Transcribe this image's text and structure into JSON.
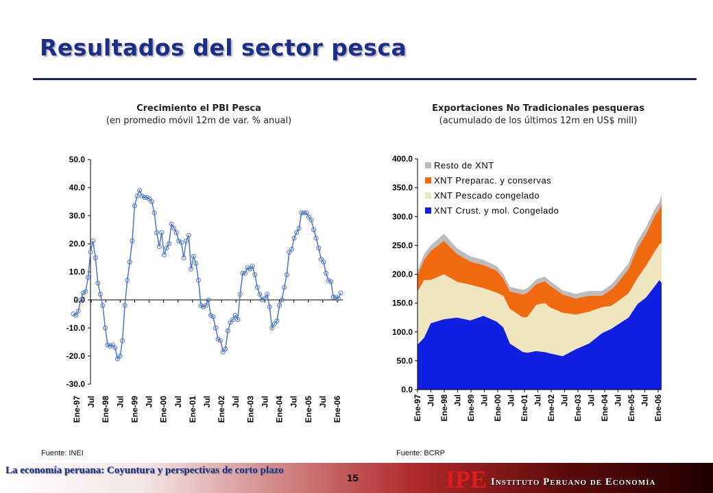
{
  "page": {
    "title": "Resultados del sector pesca",
    "footer_text": "La economía peruana: Coyuntura y perspectivas de corto plazo",
    "page_number": "15",
    "logo": "IPE",
    "institute_name": "Instituto Peruano de Economía"
  },
  "chart_data": [
    {
      "type": "line",
      "title": "Crecimiento el PBI Pesca",
      "subtitle": "(en promedio móvil 12m de var. % anual)",
      "source": "Fuente: INEI",
      "ylim": [
        -30,
        50
      ],
      "yticks": [
        "-30.0",
        "-20.0",
        "-10.0",
        "0.0",
        "10.0",
        "20.0",
        "30.0",
        "40.0",
        "50.0"
      ],
      "xticks": [
        "Ene-97",
        "Jul",
        "Ene-98",
        "Jul",
        "Ene-99",
        "Jul",
        "Ene-00",
        "Jul",
        "Ene-01",
        "Jul",
        "Ene-02",
        "Jul",
        "Ene-03",
        "Jul",
        "Ene-04",
        "Jul",
        "Ene-05",
        "Jul",
        "Ene-06"
      ],
      "grid": false,
      "marker": "open-circle",
      "color": "#4a74c9",
      "values": [
        -5,
        -5.5,
        -4,
        0,
        2.5,
        3,
        8,
        17,
        21,
        15,
        6,
        2,
        -2,
        -10,
        -16,
        -16.5,
        -16,
        -17,
        -21,
        -20,
        -14.5,
        -2,
        7,
        13.5,
        21,
        33.5,
        37,
        39,
        37,
        36.5,
        36.5,
        36,
        35,
        31,
        24,
        19,
        24,
        16,
        18.5,
        20,
        27,
        25.5,
        24,
        21,
        20.5,
        15,
        21,
        23,
        11,
        15.5,
        13,
        7,
        -2,
        -2.5,
        -2,
        0,
        -5.5,
        -6,
        -10,
        -14,
        -14.5,
        -18.5,
        -17.5,
        -11,
        -8,
        -7,
        -5.5,
        -7,
        2,
        9.5,
        9.5,
        11.5,
        11,
        12,
        9,
        4.5,
        2,
        0,
        0.5,
        2,
        -2.5,
        -10,
        -8.5,
        -7.5,
        -2,
        0,
        4.5,
        9,
        17,
        18,
        22,
        24,
        25.5,
        31,
        31,
        31,
        29.5,
        28.5,
        25,
        22,
        18.5,
        14.5,
        13.5,
        9.5,
        7,
        6.5,
        1,
        1,
        0.5,
        2.5
      ]
    },
    {
      "type": "area",
      "stacked": true,
      "title": "Exportaciones No Tradicionales pesqueras",
      "subtitle": "(acumulado de los últimos 12m en US$ mill)",
      "source": "Fuente: BCRP",
      "ylim": [
        0,
        400
      ],
      "yticks": [
        "0.0",
        "50.0",
        "100.0",
        "150.0",
        "200.0",
        "250.0",
        "300.0",
        "350.0",
        "400.0"
      ],
      "xticks": [
        "Ene-97",
        "Jul",
        "Ene-98",
        "Jul",
        "Ene-99",
        "Jul",
        "Ene-00",
        "Jul",
        "Ene-01",
        "Jul",
        "Ene-02",
        "Jul",
        "Ene-03",
        "Jul",
        "Ene-04",
        "Jul",
        "Ene-05",
        "Jul",
        "Ene-06"
      ],
      "legend_position": "top-left",
      "series_anchors_months": [
        0,
        3,
        6,
        12,
        18,
        24,
        30,
        36,
        39,
        42,
        48,
        50,
        54,
        58,
        60,
        66,
        72,
        78,
        84,
        88,
        90,
        96,
        100,
        104,
        108,
        110,
        111
      ],
      "series": [
        {
          "name": "XNT Crust. y mol. Congelado",
          "color": "#1020e0",
          "values": [
            78,
            90,
            115,
            122,
            125,
            120,
            128,
            118,
            108,
            80,
            65,
            64,
            67,
            65,
            63,
            58,
            70,
            80,
            98,
            105,
            110,
            125,
            148,
            160,
            180,
            190,
            185
          ]
        },
        {
          "name": "XNT Pescado congelado",
          "color": "#efe6c0",
          "values": [
            92,
            100,
            75,
            78,
            62,
            62,
            48,
            50,
            55,
            60,
            60,
            62,
            80,
            85,
            80,
            75,
            60,
            55,
            45,
            40,
            40,
            42,
            45,
            55,
            60,
            62,
            70
          ]
        },
        {
          "name": "XNT Preparac. y conservas",
          "color": "#f26a10",
          "values": [
            28,
            35,
            50,
            58,
            48,
            40,
            40,
            38,
            30,
            30,
            40,
            42,
            36,
            38,
            38,
            32,
            28,
            28,
            20,
            28,
            30,
            42,
            52,
            55,
            62,
            60,
            68
          ]
        },
        {
          "name": "Resto de XNT",
          "color": "#bcbcbc",
          "values": [
            8,
            10,
            10,
            12,
            10,
            9,
            9,
            8,
            8,
            8,
            8,
            8,
            8,
            8,
            8,
            7,
            8,
            8,
            8,
            9,
            10,
            10,
            12,
            12,
            12,
            13,
            15
          ]
        }
      ]
    }
  ]
}
